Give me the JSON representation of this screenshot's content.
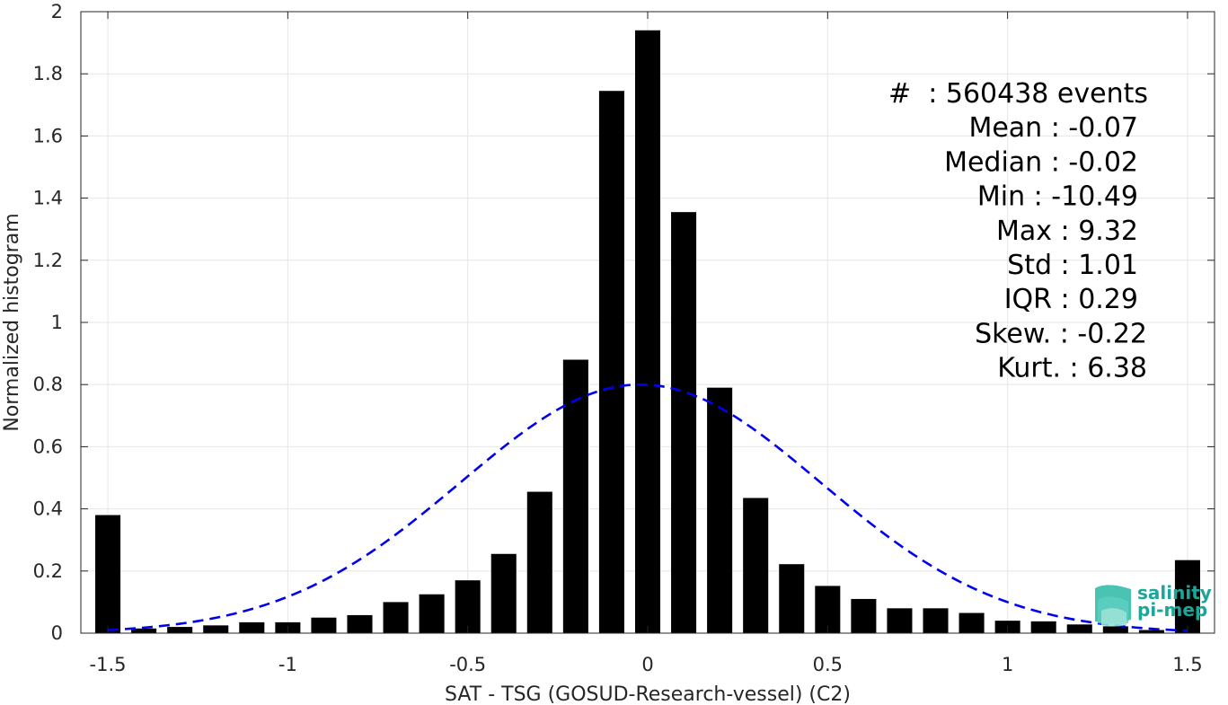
{
  "chart_data": {
    "type": "bar",
    "xlabel": "SAT - TSG (GOSUD-Research-vessel) (C2)",
    "ylabel": "Normalized histogram",
    "xlim": [
      -1.575,
      1.575
    ],
    "ylim": [
      0,
      2
    ],
    "grid": true,
    "xticks": [
      -1.5,
      -1,
      -0.5,
      0,
      0.5,
      1,
      1.5
    ],
    "xtick_labels": [
      "-1.5",
      "-1",
      "-0.5",
      "0",
      "0.5",
      "1",
      "1.5"
    ],
    "yticks": [
      0,
      0.2,
      0.4,
      0.6,
      0.8,
      1,
      1.2,
      1.4,
      1.6,
      1.8,
      2
    ],
    "ytick_labels": [
      "0",
      "0.2",
      "0.4",
      "0.6",
      "0.8",
      "1",
      "1.2",
      "1.4",
      "1.6",
      "1.8",
      "2"
    ],
    "bar_width": 0.07,
    "bar_color": "#000000",
    "x": [
      -1.5,
      -1.4,
      -1.3,
      -1.2,
      -1.1,
      -1.0,
      -0.9,
      -0.8,
      -0.7,
      -0.6,
      -0.5,
      -0.4,
      -0.3,
      -0.2,
      -0.1,
      0.0,
      0.1,
      0.2,
      0.3,
      0.4,
      0.5,
      0.6,
      0.7,
      0.8,
      0.9,
      1.0,
      1.1,
      1.2,
      1.3,
      1.4,
      1.5
    ],
    "values": [
      0.38,
      0.015,
      0.02,
      0.025,
      0.035,
      0.035,
      0.05,
      0.058,
      0.1,
      0.125,
      0.17,
      0.255,
      0.455,
      0.88,
      1.745,
      1.94,
      1.355,
      0.79,
      0.435,
      0.222,
      0.152,
      0.11,
      0.08,
      0.08,
      0.065,
      0.04,
      0.038,
      0.028,
      0.022,
      0.01,
      0.235
    ],
    "fit": {
      "type": "normal",
      "mean": -0.02,
      "peak": 0.8,
      "sigma": 0.5,
      "style": "dashed",
      "color": "#0000ee"
    },
    "annotations": [
      "#  : 560438 events",
      "Mean : -0.07",
      "Median : -0.02",
      "Min : -10.49",
      "Max : 9.32",
      "Std : 1.01",
      "IQR : 0.29",
      "Skew. : -0.22",
      "Kurt. : 6.38"
    ]
  },
  "logo": {
    "line1": "salinity",
    "line2": "pi-mep",
    "color": "#1aa79a"
  }
}
